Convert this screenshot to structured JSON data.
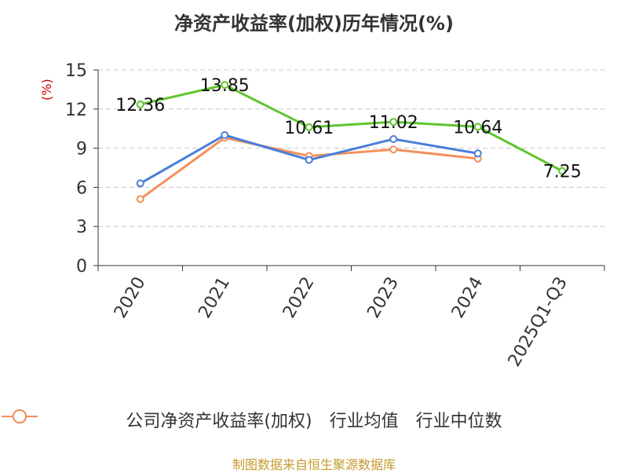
{
  "chart_data": {
    "type": "line",
    "title": "净资产收益率(加权)历年情况(%)",
    "ylabel": "(%)",
    "categories": [
      "2020",
      "2021",
      "2022",
      "2023",
      "2024",
      "2025Q1-Q3"
    ],
    "ylim": [
      0,
      15
    ],
    "yticks": [
      0,
      3,
      6,
      9,
      12,
      15
    ],
    "grid": true,
    "legend_position": "bottom",
    "series": [
      {
        "name": "公司净资产收益率(加权)",
        "color": "#5ec52d",
        "values": [
          12.36,
          13.85,
          10.61,
          11.02,
          10.64,
          7.25
        ],
        "labels": [
          "12.36",
          "13.85",
          "10.61",
          "11.02",
          "10.64",
          "7.25"
        ]
      },
      {
        "name": "行业均值",
        "color": "#4a7fd8",
        "values": [
          6.3,
          10.0,
          8.1,
          9.7,
          8.6,
          null
        ]
      },
      {
        "name": "行业中位数",
        "color": "#f4905a",
        "values": [
          5.1,
          9.8,
          8.4,
          8.9,
          8.2,
          null
        ]
      }
    ]
  },
  "footer": {
    "source": "制图数据来自恒生聚源数据库"
  }
}
